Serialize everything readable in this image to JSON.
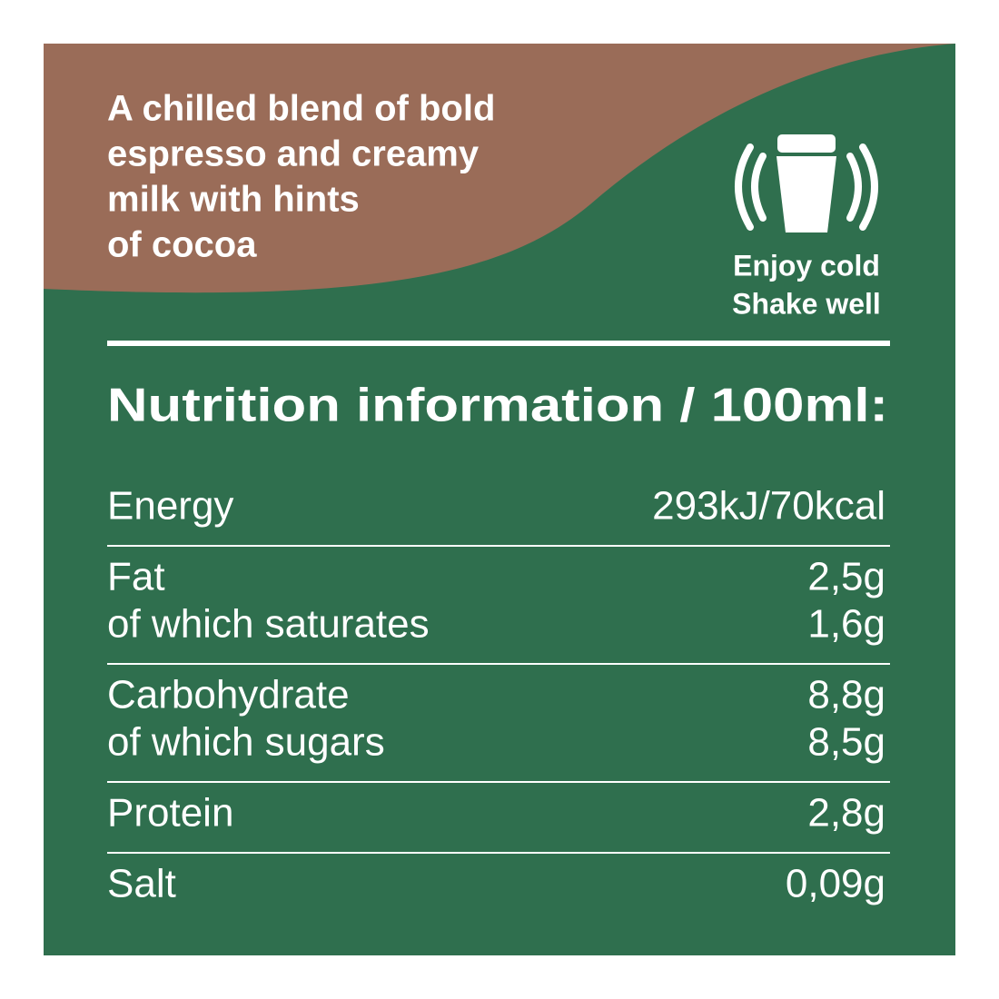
{
  "description": [
    "A chilled blend of bold",
    "espresso and creamy",
    "milk with hints",
    "of cocoa"
  ],
  "instructions": [
    "Enjoy cold",
    "Shake well"
  ],
  "nutrition": {
    "title": "Nutrition information / 100ml:",
    "groups": [
      [
        {
          "label": "Energy",
          "value": "293kJ/70kcal"
        }
      ],
      [
        {
          "label": "Fat",
          "value": "2,5g"
        },
        {
          "label": "of which saturates",
          "value": "1,6g"
        }
      ],
      [
        {
          "label": "Carbohydrate",
          "value": "8,8g"
        },
        {
          "label": "of which sugars",
          "value": "8,5g"
        }
      ],
      [
        {
          "label": "Protein",
          "value": "2,8g"
        }
      ],
      [
        {
          "label": "Salt",
          "value": "0,09g"
        }
      ]
    ]
  }
}
